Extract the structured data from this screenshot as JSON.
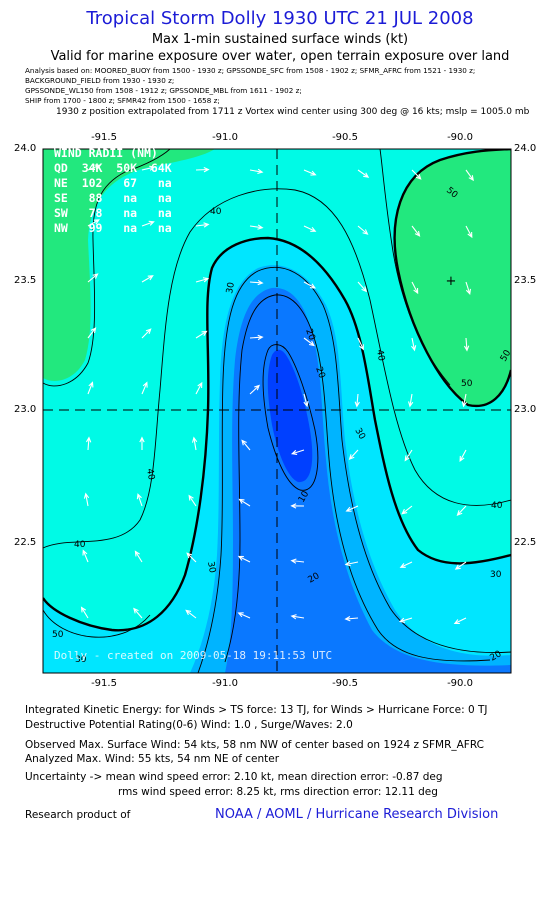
{
  "header": {
    "title": "Tropical Storm Dolly 1930 UTC 21 JUL 2008",
    "subtitle": "Max 1-min sustained surface winds (kt)",
    "valid": "Valid for marine exposure over water, open terrain exposure over land"
  },
  "analysis_lines": [
    "Analysis based on:  MOORED_BUOY from 1500 - 1930 z;  GPSSONDE_SFC from 1508 - 1902 z;  SFMR_AFRC from 1521 - 1930 z;",
    "BACKGROUND_FIELD from 1930 - 1930 z;",
    "GPSSONDE_WL150 from 1508 - 1912 z;  GPSSONDE_MBL from 1611 - 1902 z;",
    "SHIP from 1700 - 1800 z;  SFMR42 from 1500 - 1658 z;"
  ],
  "position_note": "1930 z position extrapolated from 1711 z Vortex wind center using 300 deg @ 16 kts; mslp = 1005.0 mb",
  "map": {
    "x_ticks": [
      "-91.5",
      "-91.0",
      "-90.5",
      "-90.0"
    ],
    "y_ticks": [
      "24.0",
      "23.5",
      "23.0",
      "22.5"
    ],
    "center_marker": "+",
    "contour_labels": [
      "50",
      "50",
      "50",
      "50",
      "40",
      "40",
      "40",
      "40",
      "40",
      "30",
      "30",
      "30",
      "30",
      "30",
      "20",
      "20",
      "20",
      "20",
      "10"
    ],
    "wind_radii": {
      "header": "WIND RADII (NM)",
      "columns": "QD  34K  50K  64K",
      "rows": [
        "NE  102   67   na",
        "SE   88   na   na",
        "SW   78   na   na",
        "NW   99   na   na"
      ]
    },
    "credit": "Dolly - created on 2009-05-18 19:11:53 UTC",
    "colors": {
      "band_50_plus": "#22e87e",
      "band_40_50": "#00fae6",
      "band_30_40": "#00e6ff",
      "band_20_30": "#00b4ff",
      "band_10_20": "#0a78ff",
      "band_0_10": "#0040ff",
      "title_blue": "#1c1cd6"
    }
  },
  "footer": {
    "line1": "Integrated Kinetic Energy:  for Winds > TS force: 13 TJ,  for Winds > Hurricane Force: 0 TJ",
    "line2": "Destructive Potential Rating(0-6)   Wind: 1.0 , Surge/Waves: 2.0",
    "line3": "Observed Max. Surface Wind: 54 kts, 58 nm NW of center based on 1924 z SFMR_AFRC",
    "line4": "Analyzed Max. Wind: 55 kts, 54 nm NE of center",
    "line5": "Uncertainty -> mean wind speed error: 2.10 kt,   mean direction error:  -0.87 deg",
    "line6": "rms wind speed error: 8.25 kt,   rms direction error: 12.11 deg",
    "research": "Research product of",
    "noaa": "NOAA / AOML / Hurricane Research Division"
  }
}
